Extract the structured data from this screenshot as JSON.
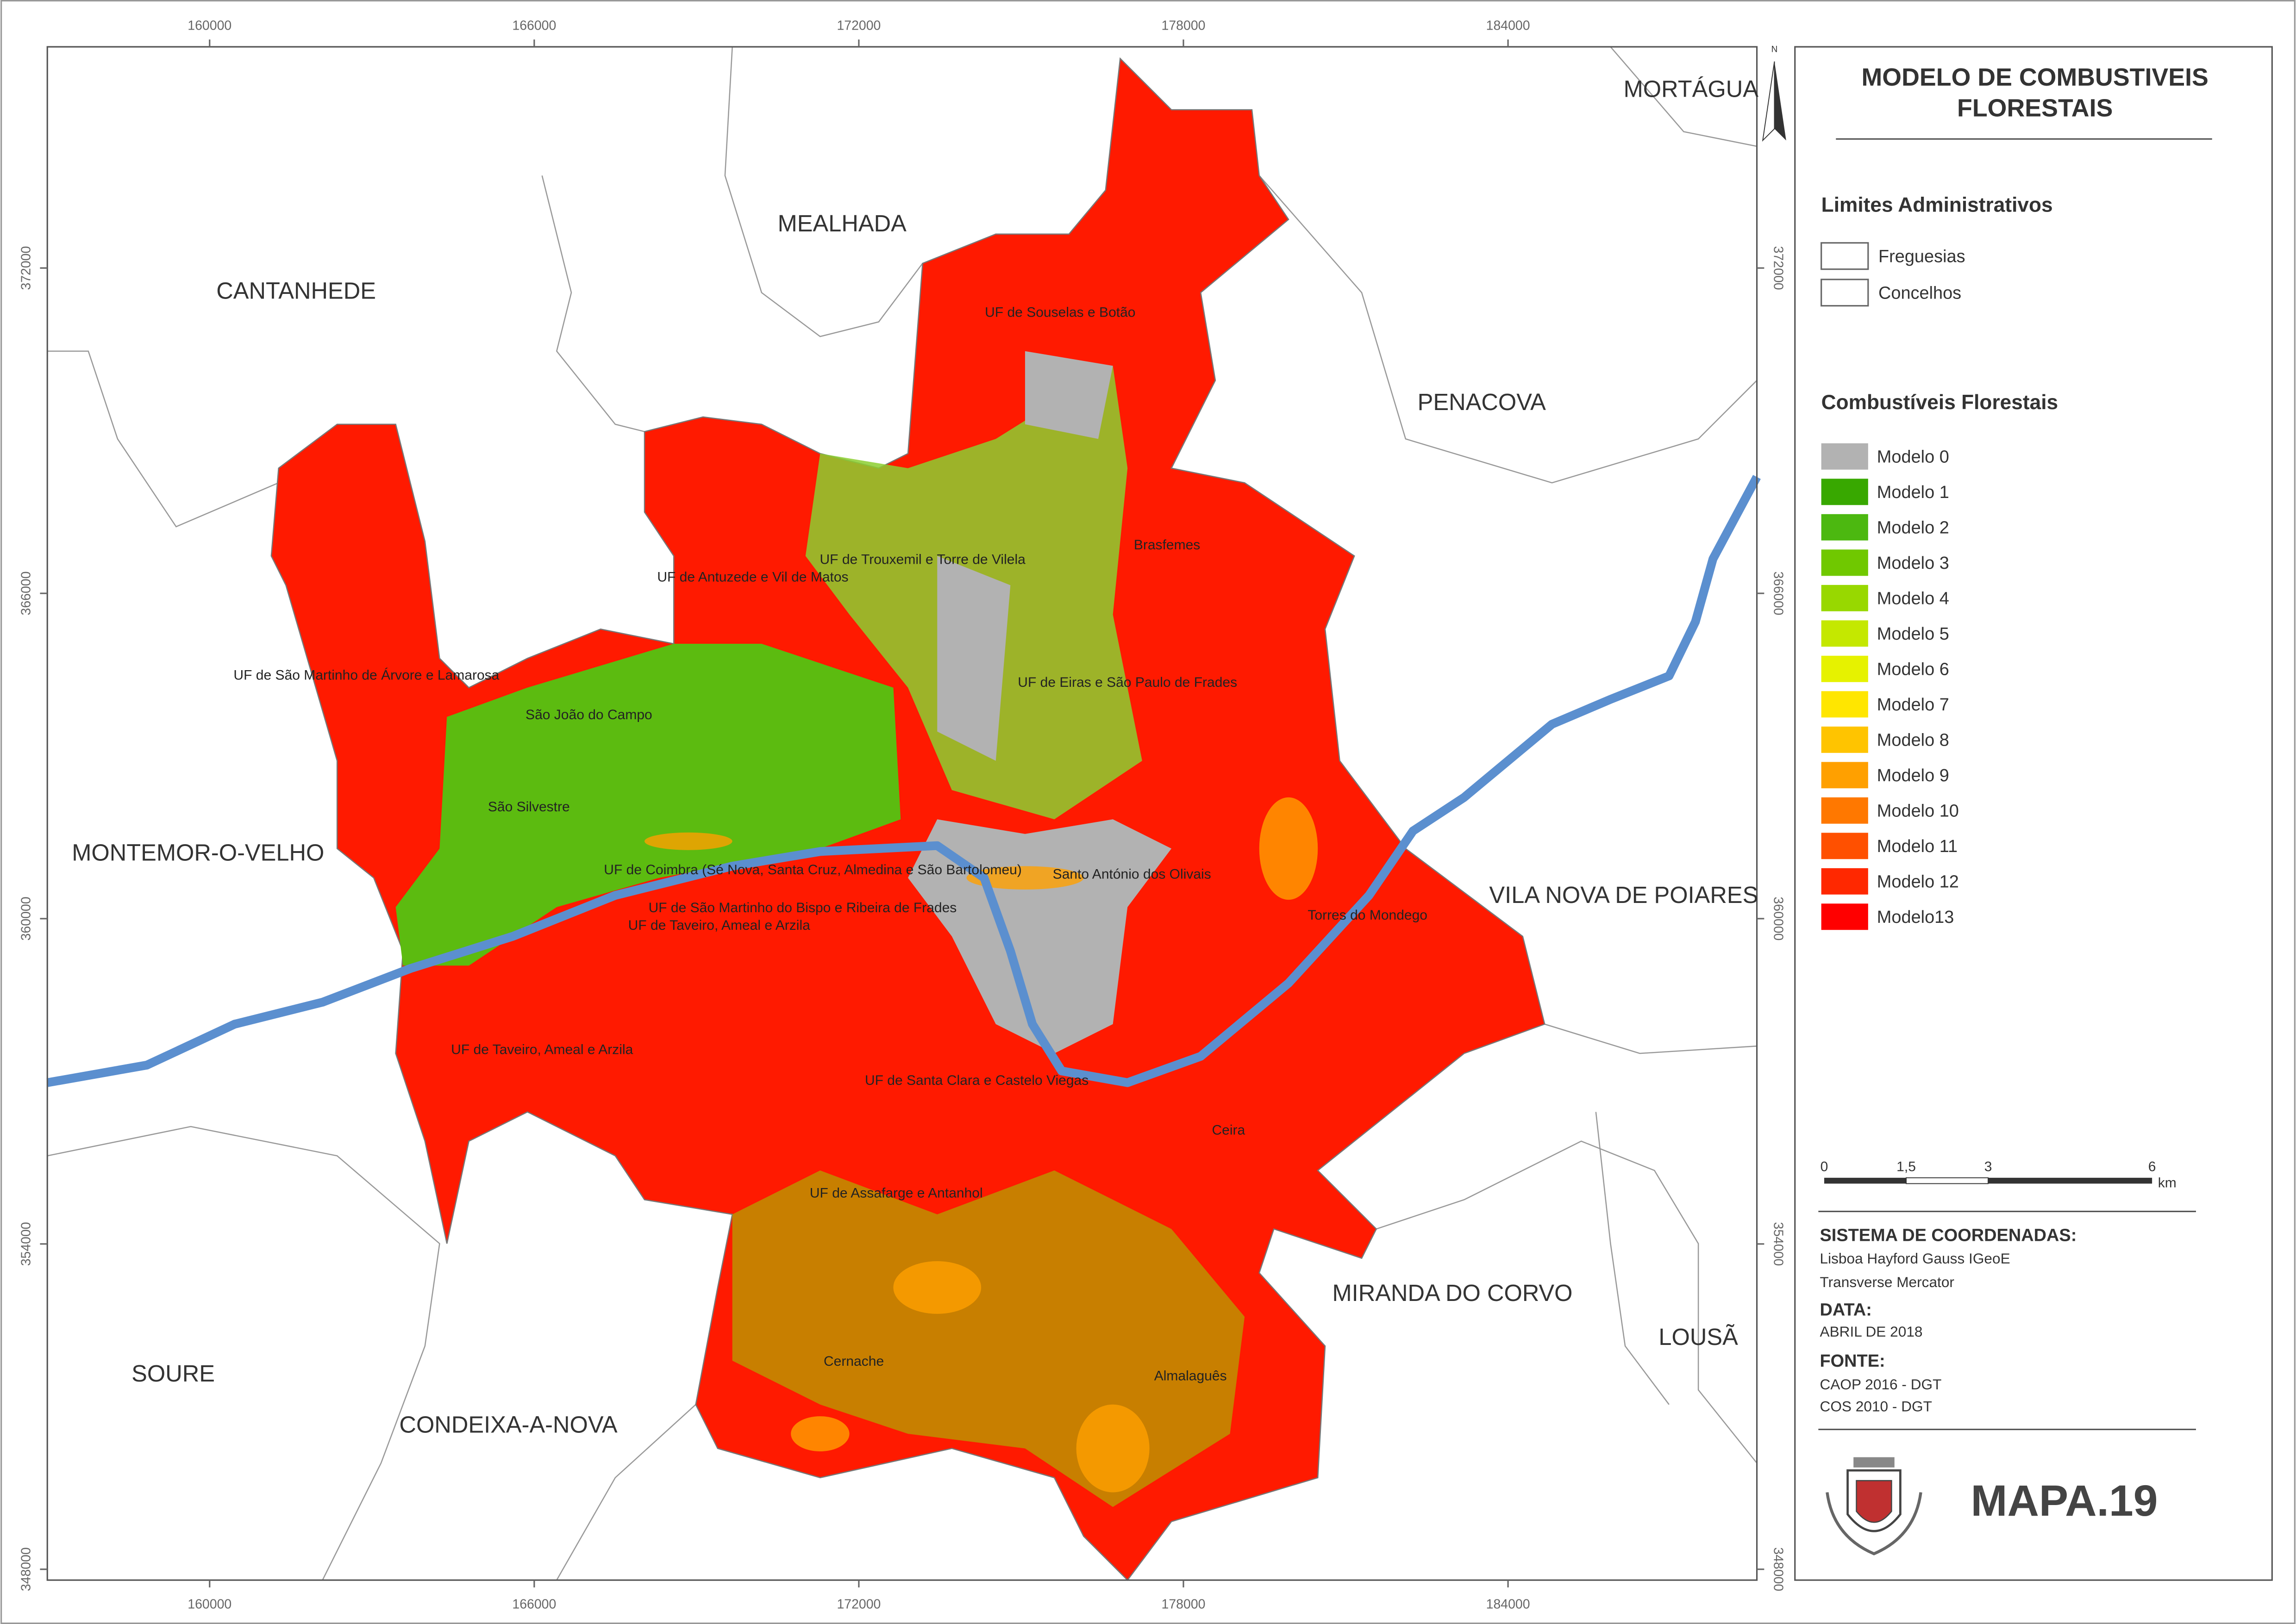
{
  "map": {
    "title": [
      "MODELO DE COMBUSTIVEIS",
      "FLORESTAIS"
    ],
    "north": "N",
    "map_id": "MAPA.19",
    "coordinates": {
      "xlim": [
        157000,
        188600
      ],
      "ylim": [
        347800,
        376080
      ],
      "xticks": [
        160000,
        166000,
        172000,
        178000,
        184000
      ],
      "yticks": [
        348000,
        354000,
        360000,
        366000,
        372000
      ]
    },
    "legend": {
      "admin_title": "Limites Administrativos",
      "admin_items": [
        "Freguesias",
        "Concelhos"
      ],
      "fuel_title": "Combustíveis Florestais",
      "fuel_items": [
        {
          "label": "Modelo 0",
          "color": "#b2b2b2"
        },
        {
          "label": "Modelo 1",
          "color": "#38a800"
        },
        {
          "label": "Modelo 2",
          "color": "#4cb810"
        },
        {
          "label": "Modelo 3",
          "color": "#70c800"
        },
        {
          "label": "Modelo 4",
          "color": "#98d800"
        },
        {
          "label": "Modelo 5",
          "color": "#c4e800"
        },
        {
          "label": "Modelo 6",
          "color": "#e6f200"
        },
        {
          "label": "Modelo 7",
          "color": "#ffe600"
        },
        {
          "label": "Modelo 8",
          "color": "#ffc400"
        },
        {
          "label": "Modelo 9",
          "color": "#ffa000"
        },
        {
          "label": "Modelo 10",
          "color": "#ff7800"
        },
        {
          "label": "Modelo 11",
          "color": "#ff5000"
        },
        {
          "label": "Modelo 12",
          "color": "#ff2800"
        },
        {
          "label": "Modelo13",
          "color": "#ff0000"
        }
      ]
    },
    "scale_bar": {
      "ticks": [
        "0",
        "1,5",
        "3",
        "6"
      ],
      "unit": "km"
    },
    "info": {
      "coord_heading": "SISTEMA DE COORDENADAS:",
      "coord_lines": [
        "Lisboa Hayford Gauss IGeoE",
        "Transverse Mercator"
      ],
      "date_heading": "DATA:",
      "date": "ABRIL DE 2018",
      "source_heading": "FONTE:",
      "sources": [
        "CAOP 2016 - DGT",
        "COS 2010 - DGT"
      ]
    },
    "concelhos": [
      "MORTÁGUA",
      "MEALHADA",
      "CANTANHEDE",
      "PENACOVA",
      "MONTEMOR-O-VELHO",
      "VILA NOVA DE POIARES",
      "MIRANDA DO CORVO",
      "LOUSÃ",
      "SOURE",
      "CONDEIXA-A-NOVA"
    ],
    "freguesias": [
      "UF de Souselas e Botão",
      "UF de Trouxemil e Torre de Vilela",
      "Brasfemes",
      "UF de Antuzede e Vil de Matos",
      "UF de São Martinho de Árvore e Lamarosa",
      "UF de Eiras e São Paulo de Frades",
      "São João do Campo",
      "São Silvestre",
      "UF de Coimbra (Sé Nova, Santa Cruz, Almedina e São Bartolomeu)",
      "Santo António dos Olivais",
      "UF de São Martinho do Bispo e Ribeira de Frades",
      "Torres do Mondego",
      "UF de Taveiro, Ameal e Arzila",
      "UF de Taveiro, Ameal e Arzila",
      "UF de Santa Clara e Castelo Viegas",
      "Ceira",
      "UF de Assafarge e Antanhol",
      "Cernache",
      "Almalaguês"
    ]
  }
}
